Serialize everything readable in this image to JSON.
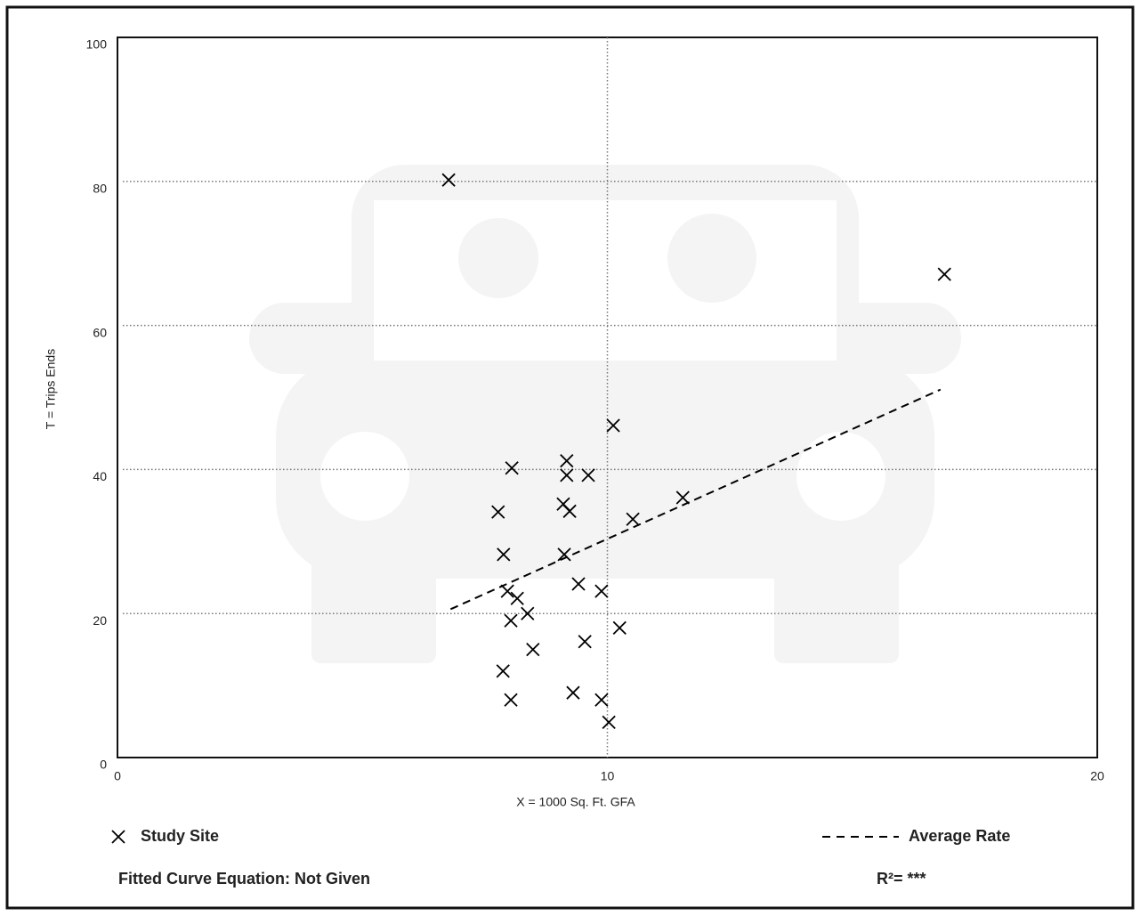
{
  "chart_data": {
    "type": "scatter",
    "x_label": "X = 1000 Sq. Ft. GFA",
    "y_label": "T = Trips Ends",
    "xlim": [
      0,
      20
    ],
    "ylim": [
      0,
      100
    ],
    "xticks": [
      0,
      10,
      20
    ],
    "yticks": [
      0,
      20,
      40,
      60,
      80,
      100
    ],
    "grid": true,
    "series": [
      {
        "name": "Study Site",
        "color": "#000000",
        "marker": "x",
        "x": [
          6.76,
          16.88,
          10.12,
          8.05,
          9.17,
          9.17,
          9.61,
          7.77,
          9.1,
          9.23,
          10.52,
          11.54,
          7.88,
          9.12,
          9.41,
          9.88,
          7.96,
          8.16,
          8.03,
          8.37,
          10.25,
          8.48,
          9.54,
          7.87,
          9.3,
          8.03,
          9.88,
          10.03
        ],
        "values": [
          80.2,
          67.1,
          46.1,
          40.2,
          41.2,
          39.2,
          39.2,
          34.1,
          35.2,
          34.2,
          33.1,
          36.1,
          28.2,
          28.2,
          24.1,
          23.1,
          23.1,
          22.1,
          19,
          20,
          18,
          15,
          16.1,
          12,
          9,
          8,
          8,
          4.9
        ]
      },
      {
        "name": "Average Rate",
        "color": "#000000",
        "marker": "dashed-line",
        "x": [
          6.8,
          16.8
        ],
        "values": [
          20.6,
          51.1
        ]
      }
    ],
    "annotations": [
      "Fitted Curve Equation: Not Given",
      "R²= ***"
    ]
  }
}
